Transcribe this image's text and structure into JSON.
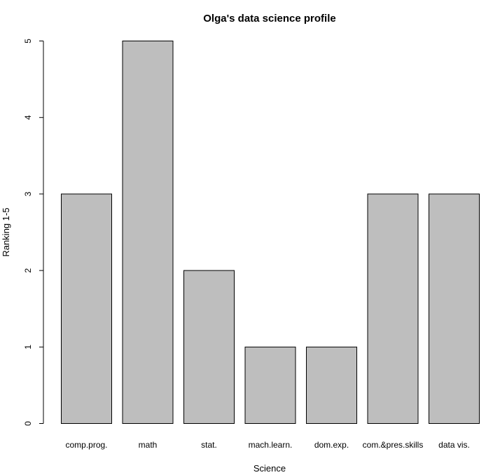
{
  "chart_data": {
    "type": "bar",
    "title": "Olga's data science profile",
    "xlabel": "Science",
    "ylabel": "Ranking 1-5",
    "categories": [
      "comp.prog.",
      "math",
      "stat.",
      "mach.learn.",
      "dom.exp.",
      "com.&pres.skills",
      "data vis."
    ],
    "values": [
      3,
      5,
      2,
      1,
      1,
      3,
      3
    ],
    "ylim": [
      0,
      5
    ],
    "yticks": [
      0,
      1,
      2,
      3,
      4,
      5
    ],
    "grid": false,
    "legend": "none",
    "bar_color": "#bebebe",
    "border_color": "#000000"
  }
}
